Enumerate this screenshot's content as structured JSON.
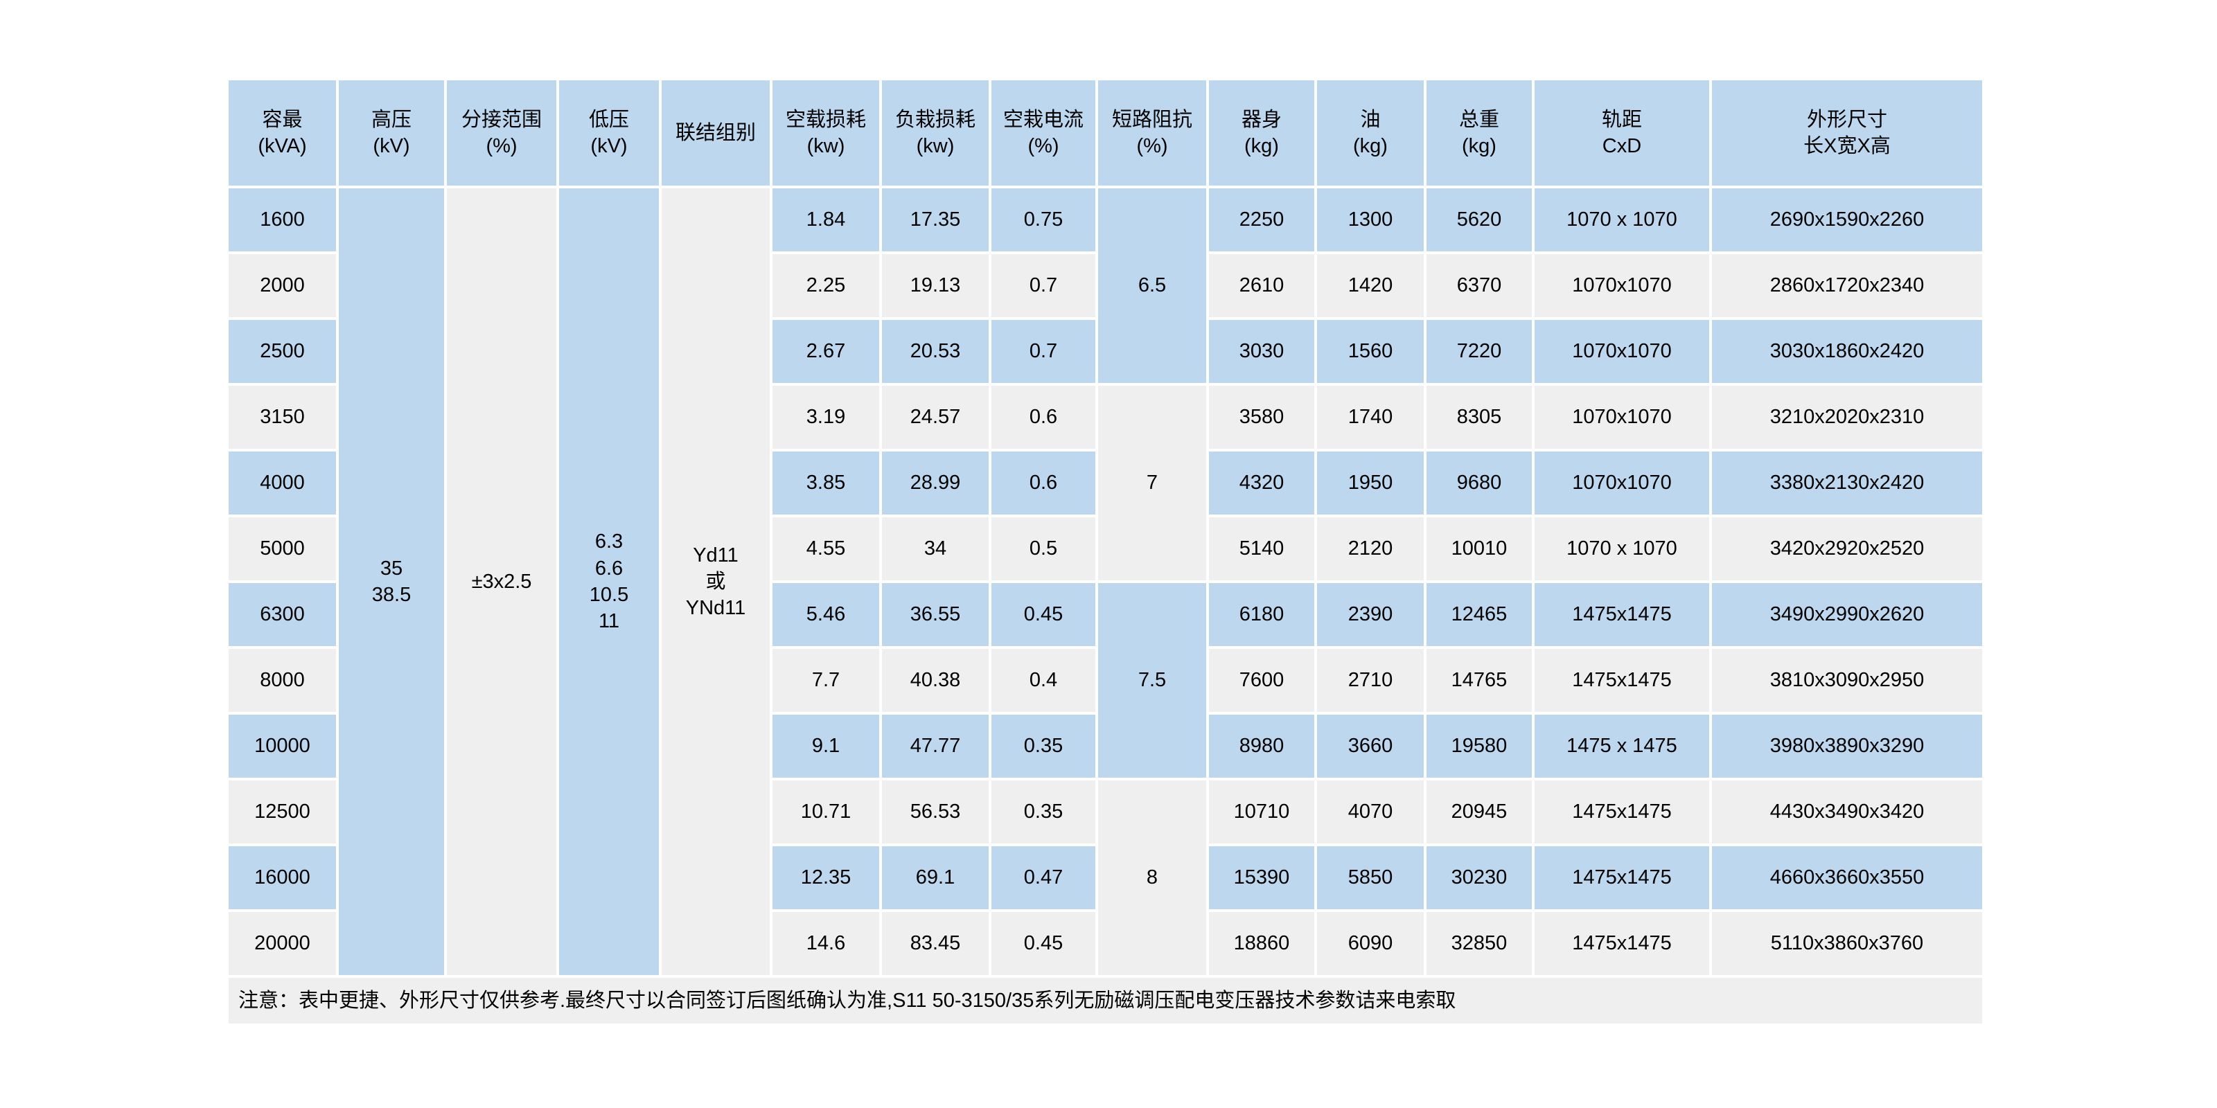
{
  "colors": {
    "page_bg": "#FFFFFF",
    "header_bg": "#BDD7EE",
    "row_blue_bg": "#BDD7EE",
    "row_gray_bg": "#EFEFEF",
    "note_bg": "#EFEFEF",
    "text": "#000000"
  },
  "table": {
    "headers": [
      {
        "key": "capacity",
        "line1": "容最",
        "line2": "(kVA)"
      },
      {
        "key": "high-voltage",
        "line1": "高压",
        "line2": "(kV)"
      },
      {
        "key": "tap-range",
        "line1": "分接范围",
        "line2": "(%)"
      },
      {
        "key": "low-voltage",
        "line1": "低压",
        "line2": "(kV)"
      },
      {
        "key": "vector-group",
        "line1": "联结组别",
        "line2": ""
      },
      {
        "key": "no-load-loss",
        "line1": "空载损耗",
        "line2": "(kw)"
      },
      {
        "key": "load-loss",
        "line1": "负栽损耗",
        "line2": "(kw)"
      },
      {
        "key": "no-load-current",
        "line1": "空栽电流",
        "line2": "(%)"
      },
      {
        "key": "impedance",
        "line1": "短路阻抗",
        "line2": "(%)"
      },
      {
        "key": "body-weight",
        "line1": "器身",
        "line2": "(kg)"
      },
      {
        "key": "oil-weight",
        "line1": "油",
        "line2": "(kg)"
      },
      {
        "key": "total-weight",
        "line1": "总重",
        "line2": "(kg)"
      },
      {
        "key": "gauge",
        "line1": "轨距",
        "line2": "CxD"
      },
      {
        "key": "dimensions",
        "line1": "外形尺寸",
        "line2": "长X宽X高"
      }
    ],
    "merged_cells": {
      "high_voltage": [
        "35",
        "38.5"
      ],
      "tap_range": [
        "±3x2.5"
      ],
      "low_voltage": [
        "6.3",
        "6.6",
        "10.5",
        "11"
      ],
      "vector_group": [
        "Yd11",
        "或",
        "YNd11"
      ]
    },
    "impedance_groups": [
      {
        "value": "6.5",
        "span": 3,
        "shade": "blue"
      },
      {
        "value": "7",
        "span": 3,
        "shade": "gray"
      },
      {
        "value": "7.5",
        "span": 3,
        "shade": "blue"
      },
      {
        "value": "8",
        "span": 3,
        "shade": "gray"
      }
    ],
    "rows": [
      {
        "capacity": "1600",
        "no_load_loss": "1.84",
        "load_loss": "17.35",
        "no_load_current": "0.75",
        "body_weight": "2250",
        "oil_weight": "1300",
        "total_weight": "5620",
        "gauge": "1070 x 1070",
        "dimensions": "2690x1590x2260"
      },
      {
        "capacity": "2000",
        "no_load_loss": "2.25",
        "load_loss": "19.13",
        "no_load_current": "0.7",
        "body_weight": "2610",
        "oil_weight": "1420",
        "total_weight": "6370",
        "gauge": "1070x1070",
        "dimensions": "2860x1720x2340"
      },
      {
        "capacity": "2500",
        "no_load_loss": "2.67",
        "load_loss": "20.53",
        "no_load_current": "0.7",
        "body_weight": "3030",
        "oil_weight": "1560",
        "total_weight": "7220",
        "gauge": "1070x1070",
        "dimensions": "3030x1860x2420"
      },
      {
        "capacity": "3150",
        "no_load_loss": "3.19",
        "load_loss": "24.57",
        "no_load_current": "0.6",
        "body_weight": "3580",
        "oil_weight": "1740",
        "total_weight": "8305",
        "gauge": "1070x1070",
        "dimensions": "3210x2020x2310"
      },
      {
        "capacity": "4000",
        "no_load_loss": "3.85",
        "load_loss": "28.99",
        "no_load_current": "0.6",
        "body_weight": "4320",
        "oil_weight": "1950",
        "total_weight": "9680",
        "gauge": "1070x1070",
        "dimensions": "3380x2130x2420"
      },
      {
        "capacity": "5000",
        "no_load_loss": "4.55",
        "load_loss": "34",
        "no_load_current": "0.5",
        "body_weight": "5140",
        "oil_weight": "2120",
        "total_weight": "10010",
        "gauge": "1070 x 1070",
        "dimensions": "3420x2920x2520"
      },
      {
        "capacity": "6300",
        "no_load_loss": "5.46",
        "load_loss": "36.55",
        "no_load_current": "0.45",
        "body_weight": "6180",
        "oil_weight": "2390",
        "total_weight": "12465",
        "gauge": "1475x1475",
        "dimensions": "3490x2990x2620"
      },
      {
        "capacity": "8000",
        "no_load_loss": "7.7",
        "load_loss": "40.38",
        "no_load_current": "0.4",
        "body_weight": "7600",
        "oil_weight": "2710",
        "total_weight": "14765",
        "gauge": "1475x1475",
        "dimensions": "3810x3090x2950"
      },
      {
        "capacity": "10000",
        "no_load_loss": "9.1",
        "load_loss": "47.77",
        "no_load_current": "0.35",
        "body_weight": "8980",
        "oil_weight": "3660",
        "total_weight": "19580",
        "gauge": "1475 x 1475",
        "dimensions": "3980x3890x3290"
      },
      {
        "capacity": "12500",
        "no_load_loss": "10.71",
        "load_loss": "56.53",
        "no_load_current": "0.35",
        "body_weight": "10710",
        "oil_weight": "4070",
        "total_weight": "20945",
        "gauge": "1475x1475",
        "dimensions": "4430x3490x3420"
      },
      {
        "capacity": "16000",
        "no_load_loss": "12.35",
        "load_loss": "69.1",
        "no_load_current": "0.47",
        "body_weight": "15390",
        "oil_weight": "5850",
        "total_weight": "30230",
        "gauge": "1475x1475",
        "dimensions": "4660x3660x3550"
      },
      {
        "capacity": "20000",
        "no_load_loss": "14.6",
        "load_loss": "83.45",
        "no_load_current": "0.45",
        "body_weight": "18860",
        "oil_weight": "6090",
        "total_weight": "32850",
        "gauge": "1475x1475",
        "dimensions": "5110x3860x3760"
      }
    ]
  },
  "note": "注意：表中更捷、外形尺寸仅供参考.最终尺寸以合同签订后图纸确认为准,S11 50-3150/35系列无励磁调压配电变压器技术参数诘来电索取"
}
